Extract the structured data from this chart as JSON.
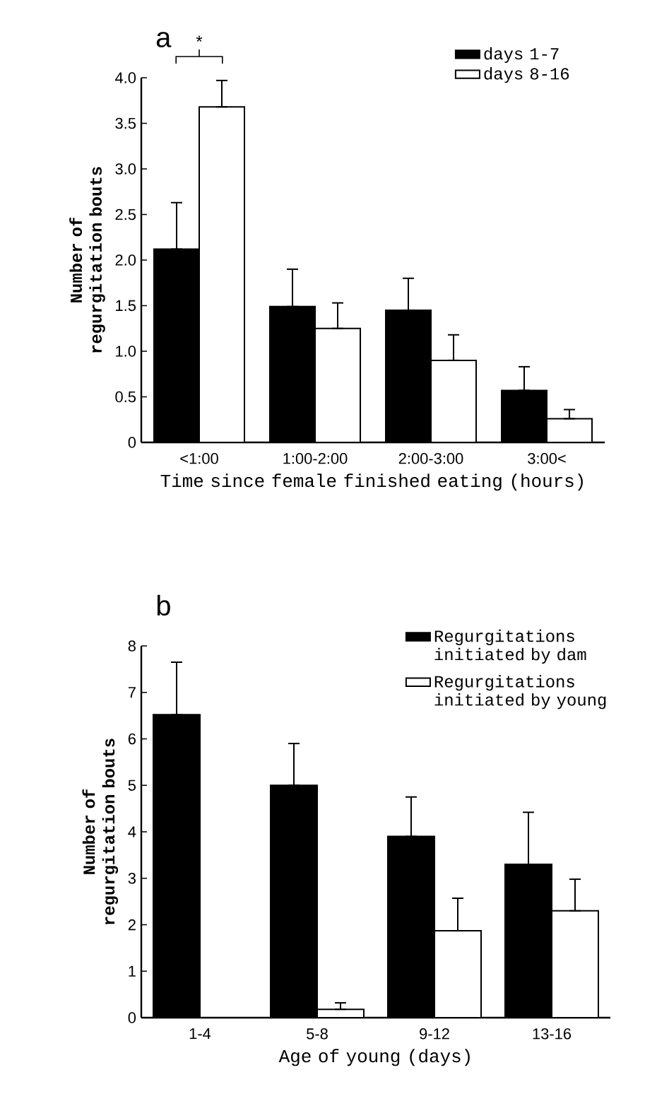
{
  "chart_data": [
    {
      "type": "bar",
      "title": "a",
      "xlabel": "Time since female finished eating (hours)",
      "ylabel": "Number of regurgitation bouts",
      "categories": [
        "<1:00",
        "1:00-2:00",
        "2:00-3:00",
        "3:00<"
      ],
      "series": [
        {
          "name": "days 1-7",
          "color": "#000000",
          "values": [
            2.12,
            1.49,
            1.45,
            0.57
          ],
          "errors": [
            [
              2.12,
              2.63
            ],
            [
              1.49,
              1.9
            ],
            [
              1.45,
              1.8
            ],
            [
              0.57,
              0.83
            ]
          ]
        },
        {
          "name": "days 8-16",
          "color": "#ffffff",
          "values": [
            3.68,
            1.25,
            0.9,
            0.26
          ],
          "errors": [
            [
              3.68,
              3.97
            ],
            [
              1.25,
              1.53
            ],
            [
              0.9,
              1.18
            ],
            [
              0.26,
              0.36
            ]
          ]
        }
      ],
      "ylim": [
        0,
        4
      ],
      "yticks": [
        0,
        0.5,
        {
          "value": 1,
          "label": "1.0"
        },
        1.5,
        {
          "value": 2,
          "label": "2.0"
        },
        2.5,
        {
          "value": 3,
          "label": "3.0"
        },
        3.5,
        {
          "value": 4,
          "label": "4.0"
        }
      ],
      "legend": "top right",
      "annotations": [
        "*"
      ]
    },
    {
      "type": "bar",
      "title": "b",
      "xlabel": "Age of young (days)",
      "ylabel": "Number of regurgitation bouts",
      "categories": [
        "1-4",
        "5-8",
        "9-12",
        "13-16"
      ],
      "series": [
        {
          "name": "Regurgitations initiated by dam",
          "color": "#000000",
          "values": [
            6.52,
            5.0,
            3.9,
            3.3
          ],
          "errors": [
            [
              6.52,
              7.65
            ],
            [
              5.0,
              5.9
            ],
            [
              3.9,
              4.75
            ],
            [
              3.3,
              4.42
            ]
          ]
        },
        {
          "name": "Regurgitations initiated by young",
          "color": "#ffffff",
          "values": [
            null,
            0.18,
            1.87,
            2.3
          ],
          "errors": [
            null,
            [
              0.18,
              0.32
            ],
            [
              1.87,
              2.57
            ],
            [
              2.3,
              2.98
            ]
          ]
        }
      ],
      "ylim": [
        0,
        8
      ],
      "yticks": [
        0,
        1,
        2,
        3,
        4,
        5,
        6,
        7,
        8
      ],
      "legend": "top right"
    }
  ]
}
